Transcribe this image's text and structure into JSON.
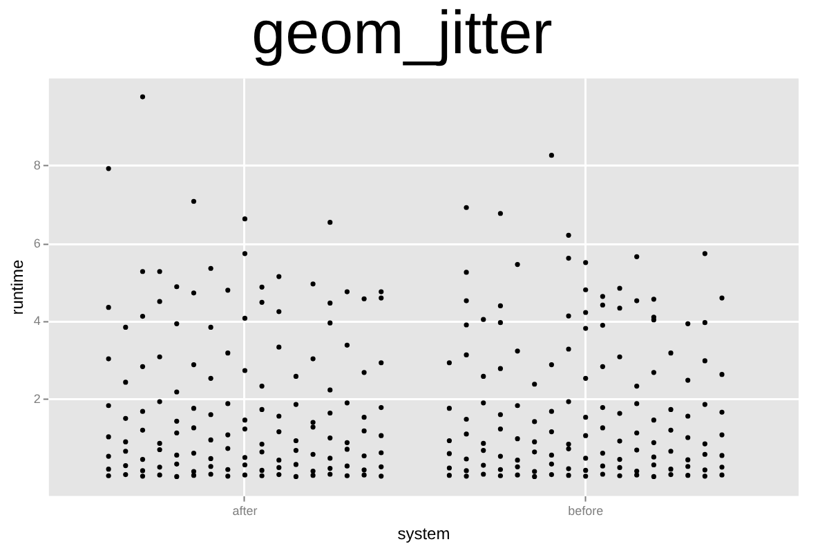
{
  "chart_data": {
    "type": "scatter",
    "title": "geom_jitter",
    "xlabel": "system",
    "ylabel": "runtime",
    "categories": [
      null,
      null,
      null,
      null,
      null,
      null,
      null,
      null,
      null,
      null,
      null,
      "after",
      null,
      null,
      null,
      null,
      null,
      null,
      null,
      null,
      null,
      null,
      null,
      null,
      null,
      null,
      null,
      null,
      null,
      null,
      null,
      "before",
      null,
      null,
      null,
      null,
      null,
      null,
      null,
      null,
      null,
      null,
      null,
      null
    ],
    "ylim": [
      -0.47,
      10.24
    ],
    "yticks": [
      2,
      4,
      6,
      8
    ],
    "grid": true,
    "marker": "circle",
    "series": [
      {
        "color": "#000000",
        "values": [
          null,
          null,
          null,
          0.05,
          0.08,
          0.04,
          0.07,
          0.03,
          0.06,
          0.09,
          0.04,
          0.07,
          0.05,
          0.08,
          0.03,
          0.06,
          0.09,
          0.05,
          0.07,
          0.04,
          null,
          null,
          null,
          0.06,
          0.04,
          0.09,
          0.05,
          0.07,
          0.03,
          0.08,
          0.06,
          0.04,
          0.09,
          0.05,
          0.07,
          0.03,
          0.08,
          0.06,
          0.04,
          0.07,
          null,
          null,
          null,
          null
        ]
      },
      {
        "color": "#000000",
        "values": [
          null,
          null,
          null,
          0.22,
          0.31,
          0.18,
          0.27,
          0.35,
          0.16,
          0.29,
          0.21,
          0.33,
          0.19,
          0.26,
          0.34,
          0.17,
          0.24,
          0.3,
          0.2,
          0.28,
          null,
          null,
          null,
          0.25,
          0.18,
          0.32,
          0.21,
          0.28,
          0.16,
          0.35,
          0.23,
          0.19,
          0.3,
          0.26,
          0.17,
          0.33,
          0.22,
          0.29,
          0.2,
          0.27,
          null,
          null,
          null,
          null
        ]
      },
      {
        "color": "#000000",
        "values": [
          null,
          null,
          null,
          0.55,
          0.68,
          0.47,
          0.72,
          0.58,
          0.63,
          0.49,
          0.75,
          0.52,
          0.66,
          0.45,
          0.7,
          0.6,
          0.5,
          0.73,
          0.56,
          0.64,
          null,
          null,
          null,
          0.62,
          0.48,
          0.7,
          0.55,
          0.45,
          0.66,
          0.58,
          0.74,
          0.5,
          0.63,
          0.47,
          0.71,
          0.53,
          0.68,
          0.46,
          0.6,
          0.57,
          null,
          null,
          null,
          null
        ]
      },
      {
        "color": "#000000",
        "values": [
          null,
          null,
          null,
          1.05,
          0.92,
          1.22,
          0.88,
          1.15,
          1.28,
          0.97,
          1.1,
          1.25,
          0.86,
          1.18,
          0.95,
          1.3,
          1.02,
          0.9,
          1.2,
          1.08,
          null,
          null,
          null,
          0.95,
          1.12,
          0.88,
          1.25,
          1.0,
          0.92,
          1.18,
          0.86,
          1.08,
          1.28,
          0.94,
          1.15,
          0.9,
          1.22,
          1.03,
          0.87,
          1.1,
          null,
          null,
          null,
          null
        ]
      },
      {
        "color": "#000000",
        "values": [
          null,
          null,
          null,
          1.85,
          1.52,
          1.7,
          1.95,
          1.45,
          1.78,
          1.62,
          1.9,
          1.48,
          1.75,
          1.58,
          1.88,
          1.42,
          1.66,
          1.92,
          1.55,
          1.8,
          null,
          null,
          null,
          1.78,
          1.5,
          1.92,
          1.62,
          1.85,
          1.44,
          1.7,
          1.95,
          1.55,
          1.8,
          1.65,
          1.9,
          1.48,
          1.75,
          1.58,
          1.88,
          1.68,
          null,
          null,
          null,
          null
        ]
      },
      {
        "color": "#000000",
        "values": [
          null,
          null,
          null,
          3.05,
          2.45,
          2.85,
          3.1,
          2.2,
          2.9,
          2.55,
          3.2,
          2.75,
          2.35,
          3.35,
          2.6,
          3.05,
          2.25,
          3.4,
          2.7,
          2.95,
          null,
          null,
          null,
          2.95,
          3.15,
          2.6,
          2.8,
          3.25,
          2.4,
          2.9,
          3.3,
          2.55,
          2.85,
          3.1,
          2.35,
          2.7,
          3.2,
          2.5,
          3.0,
          2.65,
          null,
          null,
          null,
          null
        ]
      },
      {
        "color": "#000000",
        "values": [
          null,
          null,
          null,
          4.37,
          3.86,
          4.14,
          4.52,
          3.95,
          4.74,
          3.86,
          4.81,
          4.09,
          4.5,
          4.26,
          null,
          4.97,
          3.97,
          4.77,
          4.59,
          4.61,
          null,
          null,
          null,
          null,
          3.92,
          4.06,
          3.98,
          5.47,
          null,
          8.27,
          4.15,
          3.83,
          3.91,
          4.35,
          4.54,
          4.05,
          null,
          3.95,
          3.98,
          4.61,
          null,
          null,
          null,
          null
        ]
      },
      {
        "color": "#000000",
        "values": [
          null,
          null,
          null,
          7.93,
          null,
          5.29,
          5.29,
          4.9,
          7.09,
          5.37,
          null,
          5.75,
          4.89,
          5.16,
          null,
          null,
          4.48,
          null,
          null,
          4.77,
          null,
          null,
          null,
          null,
          4.54,
          null,
          4.41,
          null,
          null,
          null,
          5.63,
          4.24,
          4.43,
          4.86,
          5.67,
          4.12,
          null,
          null,
          5.75,
          null,
          null,
          null,
          null,
          null
        ]
      },
      {
        "color": "#000000",
        "values": [
          null,
          null,
          null,
          null,
          null,
          9.77,
          null,
          null,
          null,
          null,
          null,
          6.64,
          null,
          null,
          null,
          null,
          6.55,
          null,
          null,
          null,
          null,
          null,
          null,
          null,
          5.27,
          null,
          6.78,
          null,
          null,
          null,
          6.22,
          4.82,
          4.65,
          null,
          null,
          4.58,
          null,
          null,
          null,
          null,
          null,
          null,
          null,
          null
        ]
      },
      {
        "color": "#000000",
        "values": [
          null,
          null,
          null,
          null,
          null,
          null,
          null,
          null,
          null,
          null,
          null,
          null,
          null,
          null,
          null,
          null,
          null,
          null,
          null,
          null,
          null,
          null,
          null,
          null,
          6.93,
          null,
          null,
          null,
          null,
          null,
          null,
          5.52,
          null,
          null,
          null,
          null,
          null,
          null,
          null,
          null,
          null,
          null,
          null,
          null
        ]
      }
    ]
  }
}
